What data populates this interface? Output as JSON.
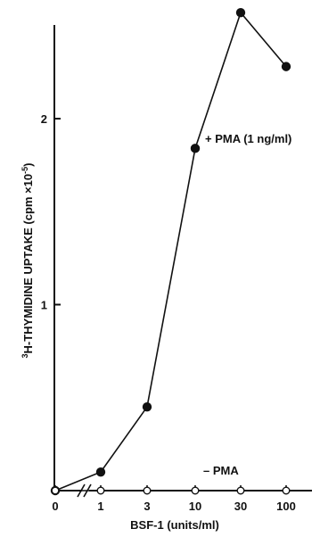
{
  "colors": {
    "ink": "#111111",
    "paper": "#ffffff"
  },
  "chart_data": {
    "type": "line",
    "xlabel": "BSF-1 (units/ml)",
    "ylabel_sup": "3",
    "ylabel": "H-THYMIDINE UPTAKE (cpm ×10",
    "ylabel_exp": "-5",
    "ylabel_close": ")",
    "categories": [
      "0",
      "1",
      "3",
      "10",
      "30",
      "100"
    ],
    "y_ticks": [
      "1",
      "2"
    ],
    "y_tick_values": [
      1,
      2
    ],
    "ylim": [
      0,
      2.6
    ],
    "x_scale": "log, with axis break between 0 and 1",
    "grid": false,
    "series": [
      {
        "name": "+ PMA (1 ng/ml)",
        "marker": "filled-circle",
        "values": [
          0.0,
          0.1,
          0.45,
          1.84,
          2.57,
          2.28
        ]
      },
      {
        "name": "– PMA",
        "marker": "open-circle",
        "values": [
          0.0,
          0.0,
          0.0,
          0.0,
          0.0,
          0.0
        ]
      }
    ]
  }
}
